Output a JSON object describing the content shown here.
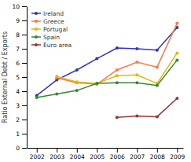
{
  "chart_data": {
    "type": "line",
    "ylabel": "Ratio External Debt / Exports",
    "x": [
      2002,
      2003,
      2004,
      2005,
      2006,
      2007,
      2008,
      2009
    ],
    "series": [
      {
        "name": "Ireland",
        "color": "#3333bb",
        "values": [
          3.7,
          4.8,
          5.5,
          6.3,
          7.05,
          7.0,
          6.9,
          8.5
        ]
      },
      {
        "name": "Greece",
        "color": "#ff7744",
        "values": [
          null,
          4.95,
          4.6,
          4.5,
          5.5,
          6.05,
          5.7,
          8.8
        ]
      },
      {
        "name": "Portugal",
        "color": "#ddbb00",
        "values": [
          null,
          5.05,
          4.65,
          4.55,
          5.1,
          5.15,
          4.55,
          6.7
        ]
      },
      {
        "name": "Spain",
        "color": "#338833",
        "values": [
          3.55,
          3.8,
          4.05,
          4.55,
          4.6,
          4.6,
          4.4,
          6.2
        ]
      },
      {
        "name": "Euro area",
        "color": "#993333",
        "values": [
          null,
          null,
          null,
          null,
          2.15,
          2.25,
          2.2,
          3.5
        ]
      }
    ],
    "xlim": [
      2001.5,
      2009.3
    ],
    "xticks": [
      2002,
      2003,
      2004,
      2005,
      2006,
      2007,
      2008,
      2009
    ],
    "ylim": [
      0,
      10
    ],
    "yticks": [
      0,
      1,
      2,
      3,
      4,
      5,
      6,
      7,
      8,
      9,
      10
    ],
    "marker": "circle",
    "legend": "upper-left",
    "grid": false
  }
}
